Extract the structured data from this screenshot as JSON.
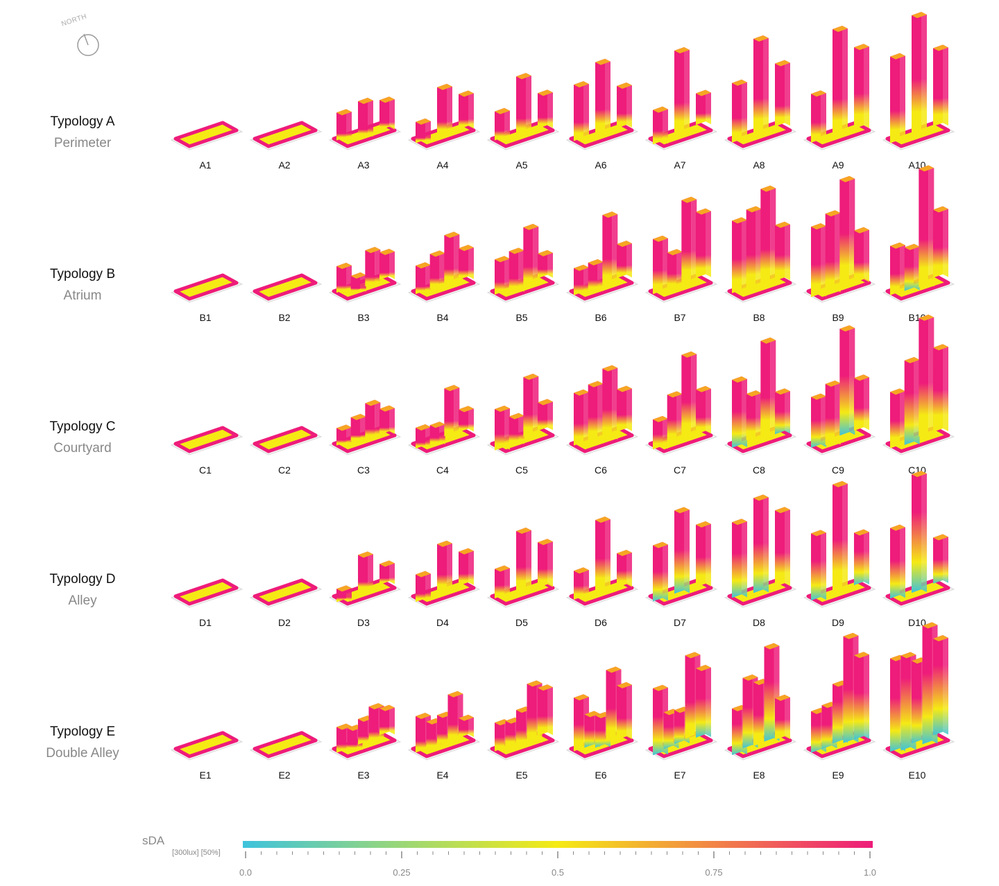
{
  "compass": {
    "label": "NORTH",
    "icon": "compass-icon"
  },
  "rows": [
    {
      "key": "A",
      "title": "Typology A",
      "subtitle": "Perimeter",
      "labels": [
        "A1",
        "A2",
        "A3",
        "A4",
        "A5",
        "A6",
        "A7",
        "A8",
        "A9",
        "A10"
      ]
    },
    {
      "key": "B",
      "title": "Typology B",
      "subtitle": "Atrium",
      "labels": [
        "B1",
        "B2",
        "B3",
        "B4",
        "B5",
        "B6",
        "B7",
        "B8",
        "B9",
        "B10"
      ]
    },
    {
      "key": "C",
      "title": "Typology C",
      "subtitle": "Courtyard",
      "labels": [
        "C1",
        "C2",
        "C3",
        "C4",
        "C5",
        "C6",
        "C7",
        "C8",
        "C9",
        "C10"
      ]
    },
    {
      "key": "D",
      "title": "Typology D",
      "subtitle": "Alley",
      "labels": [
        "D1",
        "D2",
        "D3",
        "D4",
        "D5",
        "D6",
        "D7",
        "D8",
        "D9",
        "D10"
      ]
    },
    {
      "key": "E",
      "title": "Typology E",
      "subtitle": "Double Alley",
      "labels": [
        "E1",
        "E2",
        "E3",
        "E4",
        "E5",
        "E6",
        "E7",
        "E8",
        "E9",
        "E10"
      ]
    }
  ],
  "legend": {
    "title": "sDA",
    "subtitle": "[300lux] [50%]",
    "ticks": [
      "0.0",
      "0.25",
      "0.5",
      "0.75",
      "1.0"
    ],
    "colors": [
      "#3ec3dc",
      "#f5ea14",
      "#ee1c7a"
    ]
  }
}
